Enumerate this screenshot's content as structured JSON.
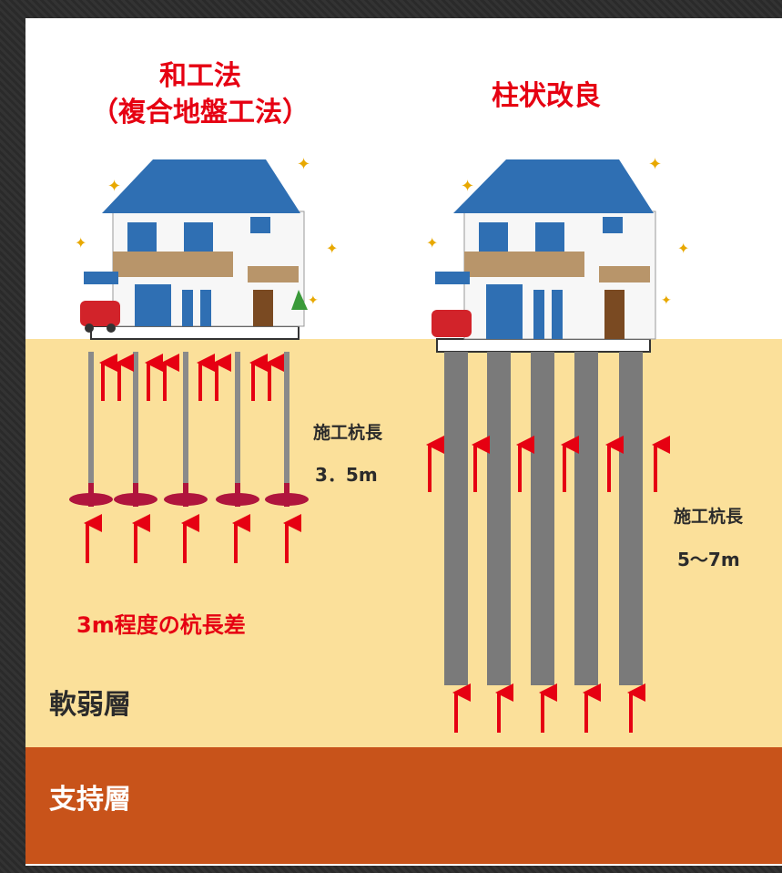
{
  "left_method": {
    "title_line1": "和工法",
    "title_line2": "（複合地盤工法）",
    "length_label": "施工杭長",
    "length_value": "3．5m",
    "note": "3m程度の杭長差"
  },
  "right_method": {
    "title": "柱状改良",
    "length_label": "施工杭長",
    "length_value": "5〜7m"
  },
  "layers": {
    "soft": "軟弱層",
    "bearing": "支持層"
  },
  "colors": {
    "accent_red": "#e60012",
    "soft_layer": "#fbe09a",
    "bearing_layer": "#c8531a",
    "column_gray": "#7a7a7a",
    "roof_blue": "#2f6fb3"
  }
}
